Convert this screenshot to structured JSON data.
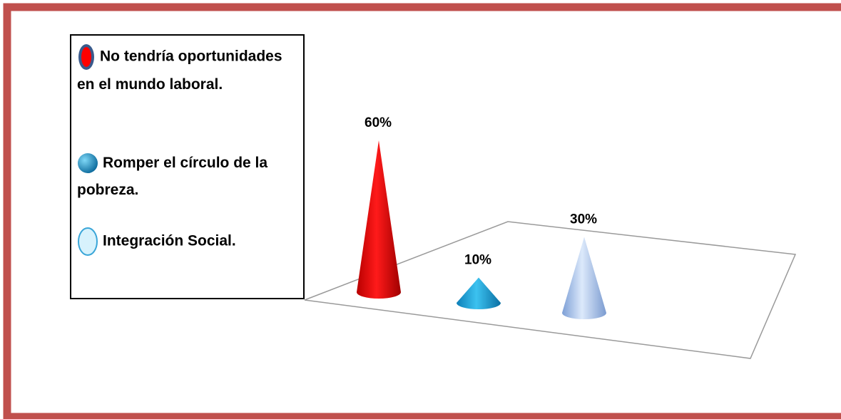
{
  "chart_data": {
    "type": "bar",
    "categories": [
      "No tendría oportunidades en el mundo laboral.",
      "Romper el círculo de la pobreza.",
      "Integración Social."
    ],
    "values": [
      60,
      10,
      30
    ],
    "data_labels": [
      "60%",
      "10%",
      "30%"
    ],
    "legend_position": "left",
    "colors": [
      "#e60000",
      "#1ca3dc",
      "#a9c3ec"
    ]
  },
  "legend": {
    "items": [
      {
        "label": "No tendría oportunidades en el mundo laboral.",
        "icon": "red-oval-icon",
        "color": "#e60000"
      },
      {
        "label": "Romper el círculo de la pobreza.",
        "icon": "blue-sphere-icon",
        "color": "#1ca3dc"
      },
      {
        "label": "Integración Social.",
        "icon": "light-blue-oval-icon",
        "color": "#cdeffb"
      }
    ]
  },
  "frame_color": "#c0504d"
}
